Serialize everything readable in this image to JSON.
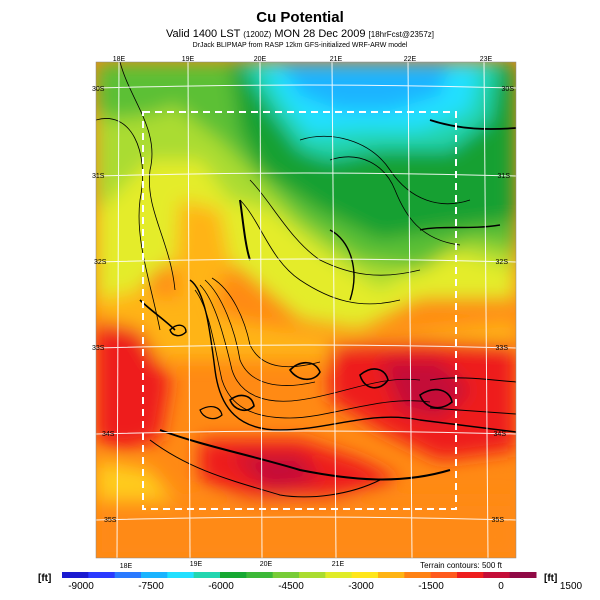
{
  "header": {
    "title": "Cu Potential",
    "subtitle_main": "Valid 1400 LST",
    "subtitle_utc": "(1200Z)",
    "subtitle_date": "MON 28 Dec 2009",
    "subtitle_forecast": "[18hrFcst@2357z]",
    "credit": "DrJack BLIPMAP from RASP 12km GFS-initialized WRF-ARW model"
  },
  "map": {
    "lon_labels_top": [
      "18E",
      "19E",
      "20E",
      "21E",
      "22E",
      "23E"
    ],
    "lon_labels_bottom": [
      "18E",
      "19E",
      "20E",
      "21E"
    ],
    "lat_labels_left": [
      "30S",
      "31S",
      "32S",
      "33S",
      "34S",
      "35S"
    ],
    "lat_labels_right": [
      "30S",
      "31S",
      "32S",
      "33S",
      "34S",
      "35S"
    ],
    "terrain_note": "Terrain contours: 500 ft"
  },
  "colorbar": {
    "unit_left": "[ft]",
    "unit_right": "[ft]",
    "tick_labels": [
      "-9000",
      "-7500",
      "-6000",
      "-4500",
      "-3000",
      "-1500",
      "0",
      "1500"
    ],
    "colors": [
      "#1a1ad0",
      "#2a3aff",
      "#2a7aff",
      "#1ab4ff",
      "#22e0ff",
      "#22d6b0",
      "#16a832",
      "#3cb838",
      "#78cc38",
      "#aadc30",
      "#e0ec28",
      "#ffe61c",
      "#ffb414",
      "#ff8214",
      "#ff5a1e",
      "#ee1e1e",
      "#c40e38",
      "#900a46"
    ]
  }
}
